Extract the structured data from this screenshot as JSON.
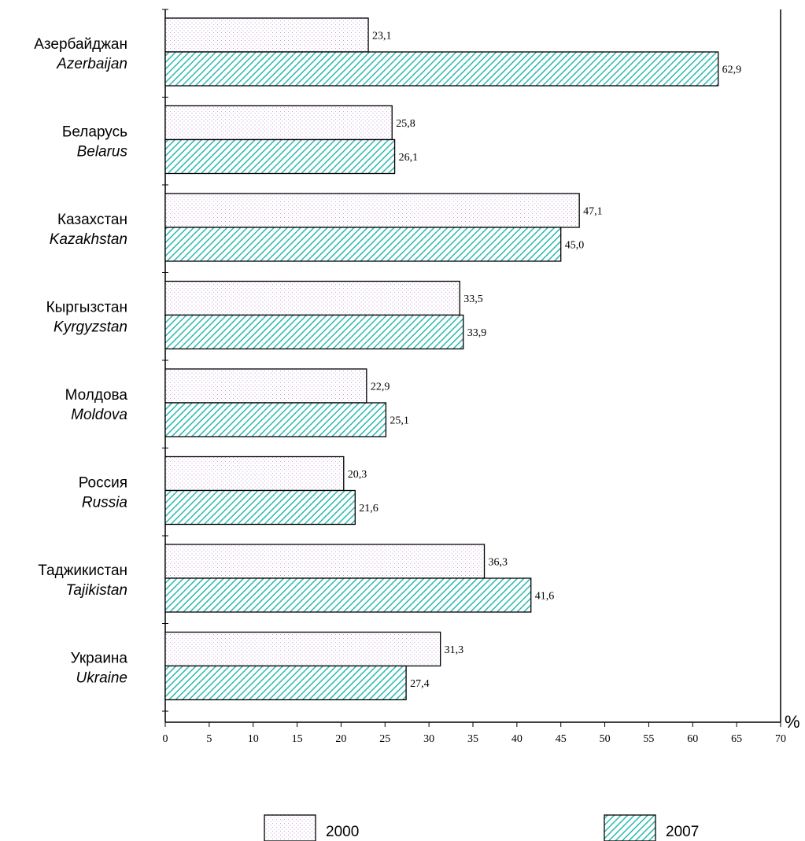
{
  "chart_data": {
    "type": "bar",
    "orientation": "horizontal",
    "categories": [
      {
        "ru": "Азербайджан",
        "en": "Azerbaijan"
      },
      {
        "ru": "Беларусь",
        "en": "Belarus"
      },
      {
        "ru": "Казахстан",
        "en": "Kazakhstan"
      },
      {
        "ru": "Кыргызстан",
        "en": "Kyrgyzstan"
      },
      {
        "ru": "Молдова",
        "en": "Moldova"
      },
      {
        "ru": "Россия",
        "en": "Russia"
      },
      {
        "ru": "Таджикистан",
        "en": "Tajikistan"
      },
      {
        "ru": "Украина",
        "en": "Ukraine"
      }
    ],
    "series": [
      {
        "name": "2000",
        "pattern": "dots",
        "color": "#c9a0d8",
        "values": [
          23.1,
          25.8,
          47.1,
          33.5,
          22.9,
          20.3,
          36.3,
          31.3
        ],
        "labels": [
          "23,1",
          "25,8",
          "47,1",
          "33,5",
          "22,9",
          "20,3",
          "36,3",
          "31,3"
        ]
      },
      {
        "name": "2007",
        "pattern": "hatch",
        "color": "#2bb9b0",
        "values": [
          62.9,
          26.1,
          45.0,
          33.9,
          25.1,
          21.6,
          41.6,
          27.4
        ],
        "labels": [
          "62,9",
          "26,1",
          "45,0",
          "33,9",
          "25,1",
          "21,6",
          "41,6",
          "27,4"
        ]
      }
    ],
    "xlim": [
      0,
      70
    ],
    "xticks": [
      0,
      5,
      10,
      15,
      20,
      25,
      30,
      35,
      40,
      45,
      50,
      55,
      60,
      65,
      70
    ],
    "xunit": "%",
    "grid": false,
    "legend_position": "bottom"
  }
}
